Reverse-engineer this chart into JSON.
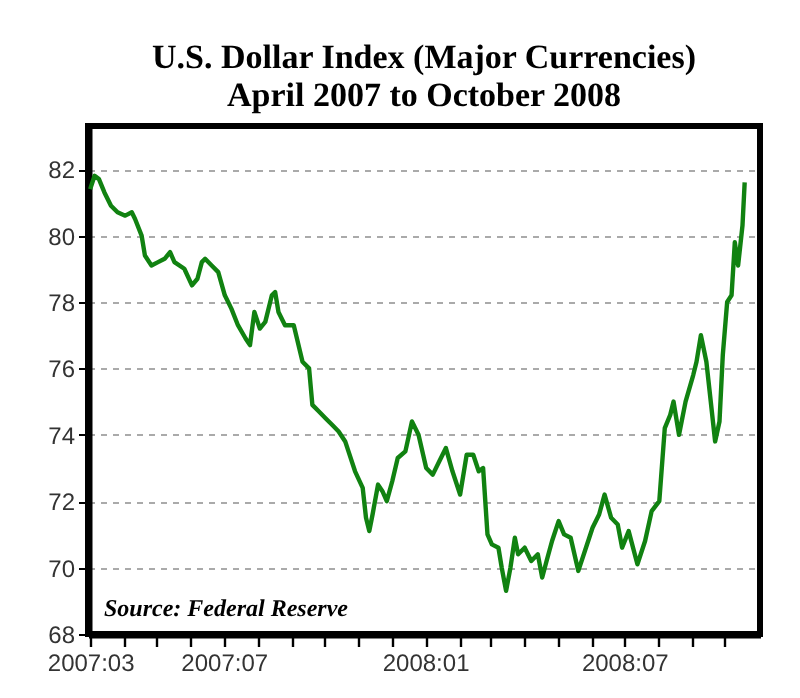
{
  "chart_data": {
    "type": "line",
    "title": "U.S. Dollar Index (Major Currencies)",
    "subtitle": "April 2007 to October 2008",
    "annotations": [
      "Source: Federal Reserve"
    ],
    "x": [
      "2007-03-01",
      "2007-03-05",
      "2007-03-09",
      "2007-03-14",
      "2007-03-20",
      "2007-03-26",
      "2007-04-02",
      "2007-04-08",
      "2007-04-11",
      "2007-04-17",
      "2007-04-20",
      "2007-04-26",
      "2007-05-02",
      "2007-05-08",
      "2007-05-13",
      "2007-05-17",
      "2007-05-26",
      "2007-06-02",
      "2007-06-07",
      "2007-06-11",
      "2007-06-14",
      "2007-06-20",
      "2007-06-26",
      "2007-07-02",
      "2007-07-08",
      "2007-07-14",
      "2007-07-21",
      "2007-07-25",
      "2007-07-29",
      "2007-08-03",
      "2007-08-08",
      "2007-08-14",
      "2007-08-17",
      "2007-08-20",
      "2007-08-26",
      "2007-09-03",
      "2007-09-11",
      "2007-09-17",
      "2007-09-20",
      "2007-09-26",
      "2007-10-02",
      "2007-10-08",
      "2007-10-14",
      "2007-10-20",
      "2007-10-23",
      "2007-10-29",
      "2007-11-05",
      "2007-11-08",
      "2007-11-11",
      "2007-11-14",
      "2007-11-19",
      "2007-11-23",
      "2007-11-27",
      "2007-12-02",
      "2007-12-07",
      "2007-12-14",
      "2007-12-20",
      "2007-12-26",
      "2008-01-02",
      "2008-01-08",
      "2008-01-14",
      "2008-01-20",
      "2008-01-26",
      "2008-02-02",
      "2008-02-08",
      "2008-02-14",
      "2008-02-19",
      "2008-02-23",
      "2008-02-27",
      "2008-03-02",
      "2008-03-08",
      "2008-03-11",
      "2008-03-15",
      "2008-03-19",
      "2008-03-23",
      "2008-03-26",
      "2008-04-01",
      "2008-04-07",
      "2008-04-13",
      "2008-04-17",
      "2008-04-21",
      "2008-04-26",
      "2008-05-02",
      "2008-05-07",
      "2008-05-13",
      "2008-05-20",
      "2008-05-26",
      "2008-06-02",
      "2008-06-08",
      "2008-06-13",
      "2008-06-19",
      "2008-06-25",
      "2008-06-29",
      "2008-07-05",
      "2008-07-13",
      "2008-07-20",
      "2008-07-26",
      "2008-08-02",
      "2008-08-07",
      "2008-08-12",
      "2008-08-15",
      "2008-08-20",
      "2008-08-26",
      "2008-09-02",
      "2008-09-05",
      "2008-09-09",
      "2008-09-14",
      "2008-09-18",
      "2008-09-22",
      "2008-09-26",
      "2008-09-29",
      "2008-10-03",
      "2008-10-07",
      "2008-10-10",
      "2008-10-13",
      "2008-10-17",
      "2008-10-19"
    ],
    "series": [
      {
        "color": "#118211",
        "values": [
          81.4,
          81.8,
          81.7,
          81.3,
          80.9,
          80.7,
          80.6,
          80.7,
          80.5,
          80.0,
          79.4,
          79.1,
          79.2,
          79.3,
          79.5,
          79.2,
          79.0,
          78.5,
          78.7,
          79.2,
          79.3,
          79.1,
          78.9,
          78.2,
          77.8,
          77.3,
          76.9,
          76.7,
          77.7,
          77.2,
          77.4,
          78.2,
          78.3,
          77.7,
          77.3,
          77.3,
          76.2,
          76.0,
          74.9,
          74.7,
          74.5,
          74.3,
          74.1,
          73.8,
          73.5,
          72.9,
          72.4,
          71.5,
          71.1,
          71.6,
          72.5,
          72.3,
          72.0,
          72.6,
          73.3,
          73.5,
          74.4,
          74.0,
          73.0,
          72.8,
          73.2,
          73.6,
          72.9,
          72.2,
          73.4,
          73.4,
          72.9,
          73.0,
          71.0,
          70.7,
          70.6,
          70.0,
          69.3,
          70.0,
          70.9,
          70.4,
          70.6,
          70.2,
          70.4,
          69.7,
          70.2,
          70.8,
          71.4,
          71.0,
          70.9,
          69.9,
          70.5,
          71.2,
          71.6,
          72.2,
          71.5,
          71.3,
          70.6,
          71.1,
          70.1,
          70.8,
          71.7,
          72.0,
          74.2,
          74.6,
          75.0,
          74.0,
          75.0,
          75.8,
          76.2,
          77.0,
          76.2,
          75.0,
          73.8,
          74.4,
          76.4,
          78.0,
          78.2,
          79.8,
          79.1,
          80.3,
          81.6
        ]
      }
    ],
    "xlim": [
      "2007-02-27",
      "2008-11-02"
    ],
    "xticks": [
      {
        "value": "2007-03-01",
        "label": "2007:03"
      },
      {
        "value": "2007-04-01",
        "label": null
      },
      {
        "value": "2007-05-01",
        "label": null
      },
      {
        "value": "2007-06-01",
        "label": null
      },
      {
        "value": "2007-07-01",
        "label": "2007:07"
      },
      {
        "value": "2007-08-01",
        "label": null
      },
      {
        "value": "2007-09-01",
        "label": null
      },
      {
        "value": "2007-10-01",
        "label": null
      },
      {
        "value": "2007-11-01",
        "label": null
      },
      {
        "value": "2007-12-01",
        "label": null
      },
      {
        "value": "2008-01-01",
        "label": "2008:01"
      },
      {
        "value": "2008-02-01",
        "label": null
      },
      {
        "value": "2008-03-01",
        "label": null
      },
      {
        "value": "2008-04-01",
        "label": null
      },
      {
        "value": "2008-05-01",
        "label": null
      },
      {
        "value": "2008-06-01",
        "label": null
      },
      {
        "value": "2008-07-01",
        "label": "2008:07"
      },
      {
        "value": "2008-08-01",
        "label": null
      },
      {
        "value": "2008-09-01",
        "label": null
      },
      {
        "value": "2008-10-01",
        "label": null
      }
    ],
    "ylim": [
      68,
      83.3
    ],
    "yticks": [
      68,
      70,
      72,
      74,
      76,
      78,
      80,
      82
    ],
    "grid": "y",
    "marker": "none",
    "line_style": "solid"
  }
}
